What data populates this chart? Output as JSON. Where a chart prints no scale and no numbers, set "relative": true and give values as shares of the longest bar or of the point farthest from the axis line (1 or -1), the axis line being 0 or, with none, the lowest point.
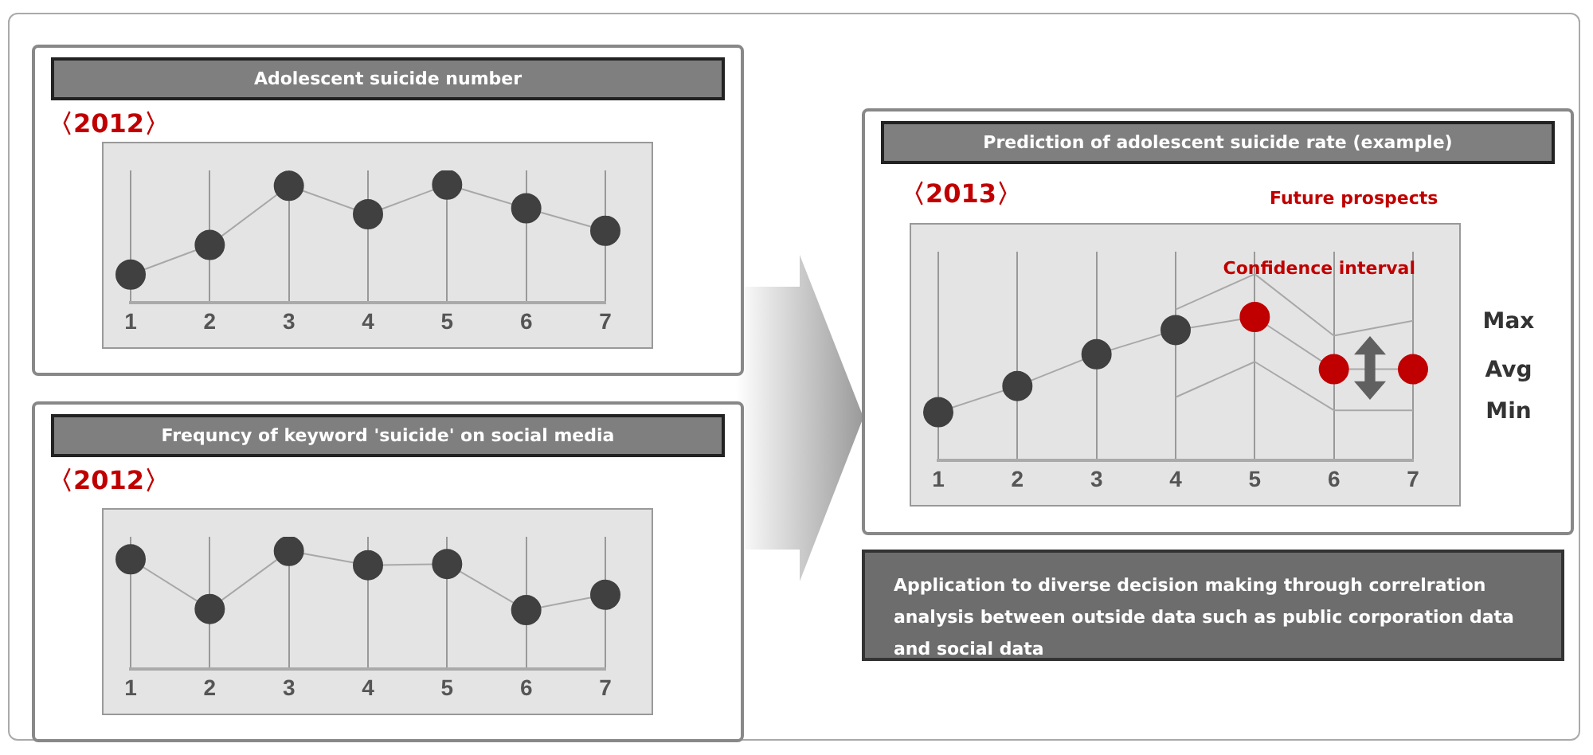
{
  "chart_data": [
    {
      "type": "line",
      "title": "Adolescent suicide number",
      "subtitle": "〈2012〉",
      "categories": [
        "1",
        "2",
        "3",
        "4",
        "5",
        "6",
        "7"
      ],
      "relative": true,
      "grid": "x",
      "legend": false,
      "marker": "circle",
      "series": [
        {
          "color": "#404040",
          "values": [
            0.24,
            0.49,
            0.99,
            0.75,
            1,
            0.8,
            0.61
          ]
        }
      ]
    },
    {
      "type": "line",
      "title": "Frequncy of keyword 'suicide' on social media",
      "subtitle": "〈2012〉",
      "categories": [
        "1",
        "2",
        "3",
        "4",
        "5",
        "6",
        "7"
      ],
      "relative": true,
      "grid": "x",
      "legend": false,
      "marker": "circle",
      "series": [
        {
          "color": "#404040",
          "values": [
            0.93,
            0.51,
            1,
            0.88,
            0.89,
            0.5,
            0.63
          ]
        }
      ]
    },
    {
      "type": "line",
      "title": "Prediction of adolescent suicide rate (example)",
      "subtitle": "〈2013〉",
      "categories": [
        "1",
        "2",
        "3",
        "4",
        "5",
        "6",
        "7"
      ],
      "relative": true,
      "grid": "x",
      "legend": false,
      "marker": "circle",
      "annotations": [
        "Future prospects",
        "Confidence interval",
        "Max",
        "Avg",
        "Min"
      ],
      "series": [
        {
          "color": "#a8a8a8",
          "colors": [
            "#404040",
            "#404040",
            "#404040",
            "#404040",
            "#c00000",
            "#c00000",
            "#c00000"
          ],
          "values": [
            0.26,
            0.4,
            0.57,
            0.7,
            0.77,
            0.49,
            0.49
          ]
        },
        {
          "color": "#a8a8a8",
          "marker": "none",
          "values": [
            null,
            null,
            null,
            0.81,
            1,
            0.67,
            0.75
          ]
        },
        {
          "color": "#a8a8a8",
          "marker": "none",
          "values": [
            null,
            null,
            null,
            0.34,
            0.53,
            0.27,
            0.27
          ]
        }
      ]
    },
    {
      "type": "other",
      "annotations": [
        "Application to diverse decision making through correlration analysis between outside data such as public corporation data and social data"
      ]
    }
  ]
}
